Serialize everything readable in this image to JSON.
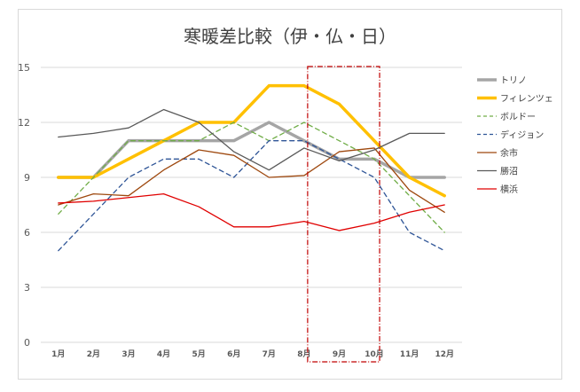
{
  "chart_data": {
    "type": "line",
    "title": "寒暖差比較（伊・仏・日）",
    "xlabel": "",
    "ylabel": "",
    "categories": [
      "1月",
      "2月",
      "3月",
      "4月",
      "5月",
      "6月",
      "7月",
      "8月",
      "9月",
      "10月",
      "11月",
      "12月"
    ],
    "ylim": [
      0,
      15
    ],
    "yticks": [
      0,
      3,
      6,
      9,
      12,
      15
    ],
    "grid": true,
    "legend_position": "right",
    "highlight": {
      "from": "8月",
      "to": "10月",
      "color": "#c00000",
      "style": "dash-dot"
    },
    "series": [
      {
        "name": "トリノ",
        "color": "#a5a5a5",
        "style": "solid",
        "width": "heavy",
        "values": [
          9,
          9,
          11,
          11,
          11,
          11,
          12,
          11,
          10,
          10,
          9,
          9
        ]
      },
      {
        "name": "フィレンツェ",
        "color": "#ffc000",
        "style": "solid",
        "width": "heavy",
        "values": [
          9,
          9,
          10,
          11,
          12,
          12,
          14,
          14,
          13,
          11,
          9,
          8
        ]
      },
      {
        "name": "ボルドー",
        "color": "#70ad47",
        "style": "dashed",
        "width": "thin",
        "values": [
          7,
          9,
          11,
          11,
          11,
          12,
          11,
          12,
          11,
          10,
          8,
          6
        ]
      },
      {
        "name": "ディジョン",
        "color": "#2f5597",
        "style": "dashed",
        "width": "thin",
        "values": [
          5,
          7,
          9,
          10,
          10,
          9,
          11,
          11,
          10,
          9,
          6,
          5
        ]
      },
      {
        "name": "余市",
        "color": "#9e480e",
        "style": "solid",
        "width": "thin",
        "values": [
          7.5,
          8.1,
          8,
          9.4,
          10.5,
          10.2,
          9,
          9.1,
          10.4,
          10.6,
          8.3,
          7.1
        ]
      },
      {
        "name": "勝沼",
        "color": "#595959",
        "style": "solid",
        "width": "thin",
        "values": [
          11.2,
          11.4,
          11.7,
          12.7,
          12,
          10.4,
          9.4,
          10.6,
          9.9,
          10.5,
          11.4,
          11.4
        ]
      },
      {
        "name": "横浜",
        "color": "#e00000",
        "style": "solid",
        "width": "thin",
        "values": [
          7.6,
          7.7,
          7.9,
          8.1,
          7.4,
          6.3,
          6.3,
          6.6,
          6.1,
          6.5,
          7.1,
          7.5
        ]
      }
    ]
  }
}
